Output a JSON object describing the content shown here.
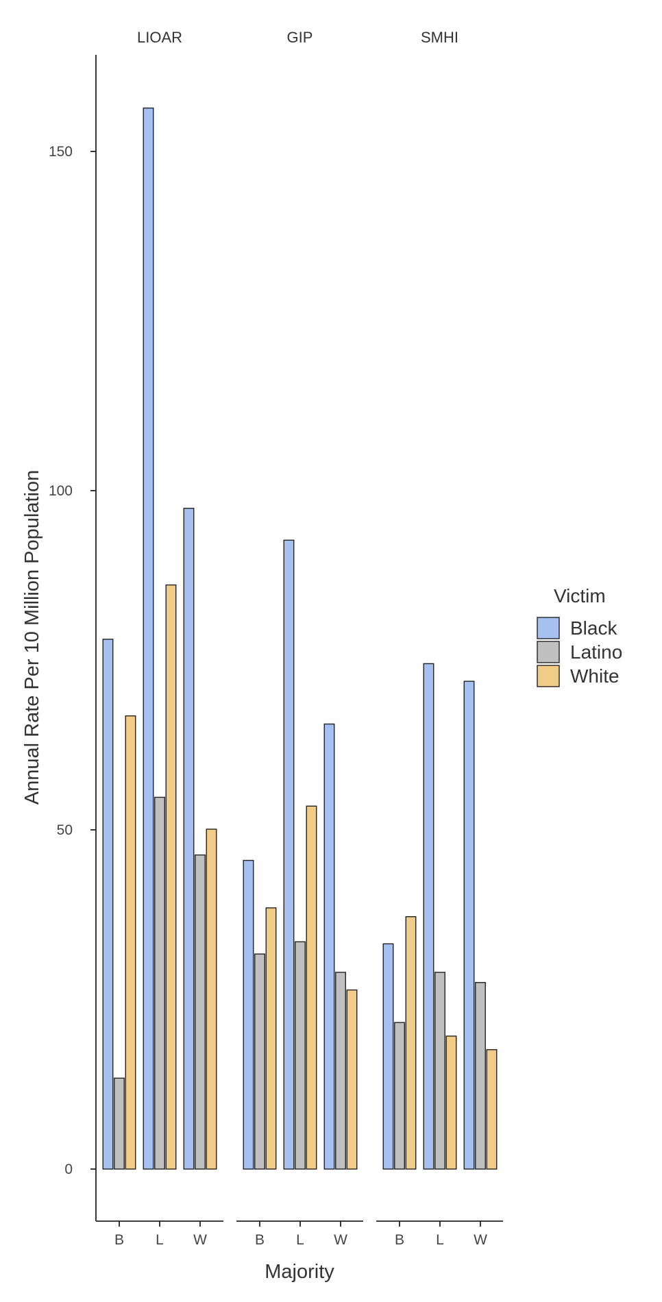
{
  "chart_data": {
    "type": "bar",
    "xlabel": "Majority",
    "ylabel": "Annual Rate Per 10 Million Population",
    "ylim": [
      -7.7,
      166
    ],
    "yticks": [
      0,
      50,
      100,
      150
    ],
    "facets": [
      "LIOAR",
      "GIP",
      "SMHI"
    ],
    "categories": [
      "B",
      "L",
      "W"
    ],
    "legend": {
      "title": "Victim",
      "position": "right"
    },
    "colors": {
      "Black": "#a6c1ef",
      "Latino": "#c0c0c0",
      "White": "#f0cc88",
      "outline": "#222222",
      "axis": "#222222"
    },
    "series": [
      {
        "name": "Black",
        "values": {
          "LIOAR": [
            78.1,
            156.4,
            97.4
          ],
          "GIP": [
            45.5,
            92.7,
            65.6
          ],
          "SMHI": [
            33.2,
            74.5,
            71.9
          ]
        }
      },
      {
        "name": "Latino",
        "values": {
          "LIOAR": [
            13.4,
            54.8,
            46.3
          ],
          "GIP": [
            31.7,
            33.5,
            29.0
          ],
          "SMHI": [
            21.6,
            29.0,
            27.5
          ]
        }
      },
      {
        "name": "White",
        "values": {
          "LIOAR": [
            66.8,
            86.1,
            50.1
          ],
          "GIP": [
            38.5,
            53.5,
            26.4
          ],
          "SMHI": [
            37.2,
            19.6,
            17.6
          ]
        }
      }
    ],
    "grid": false
  }
}
